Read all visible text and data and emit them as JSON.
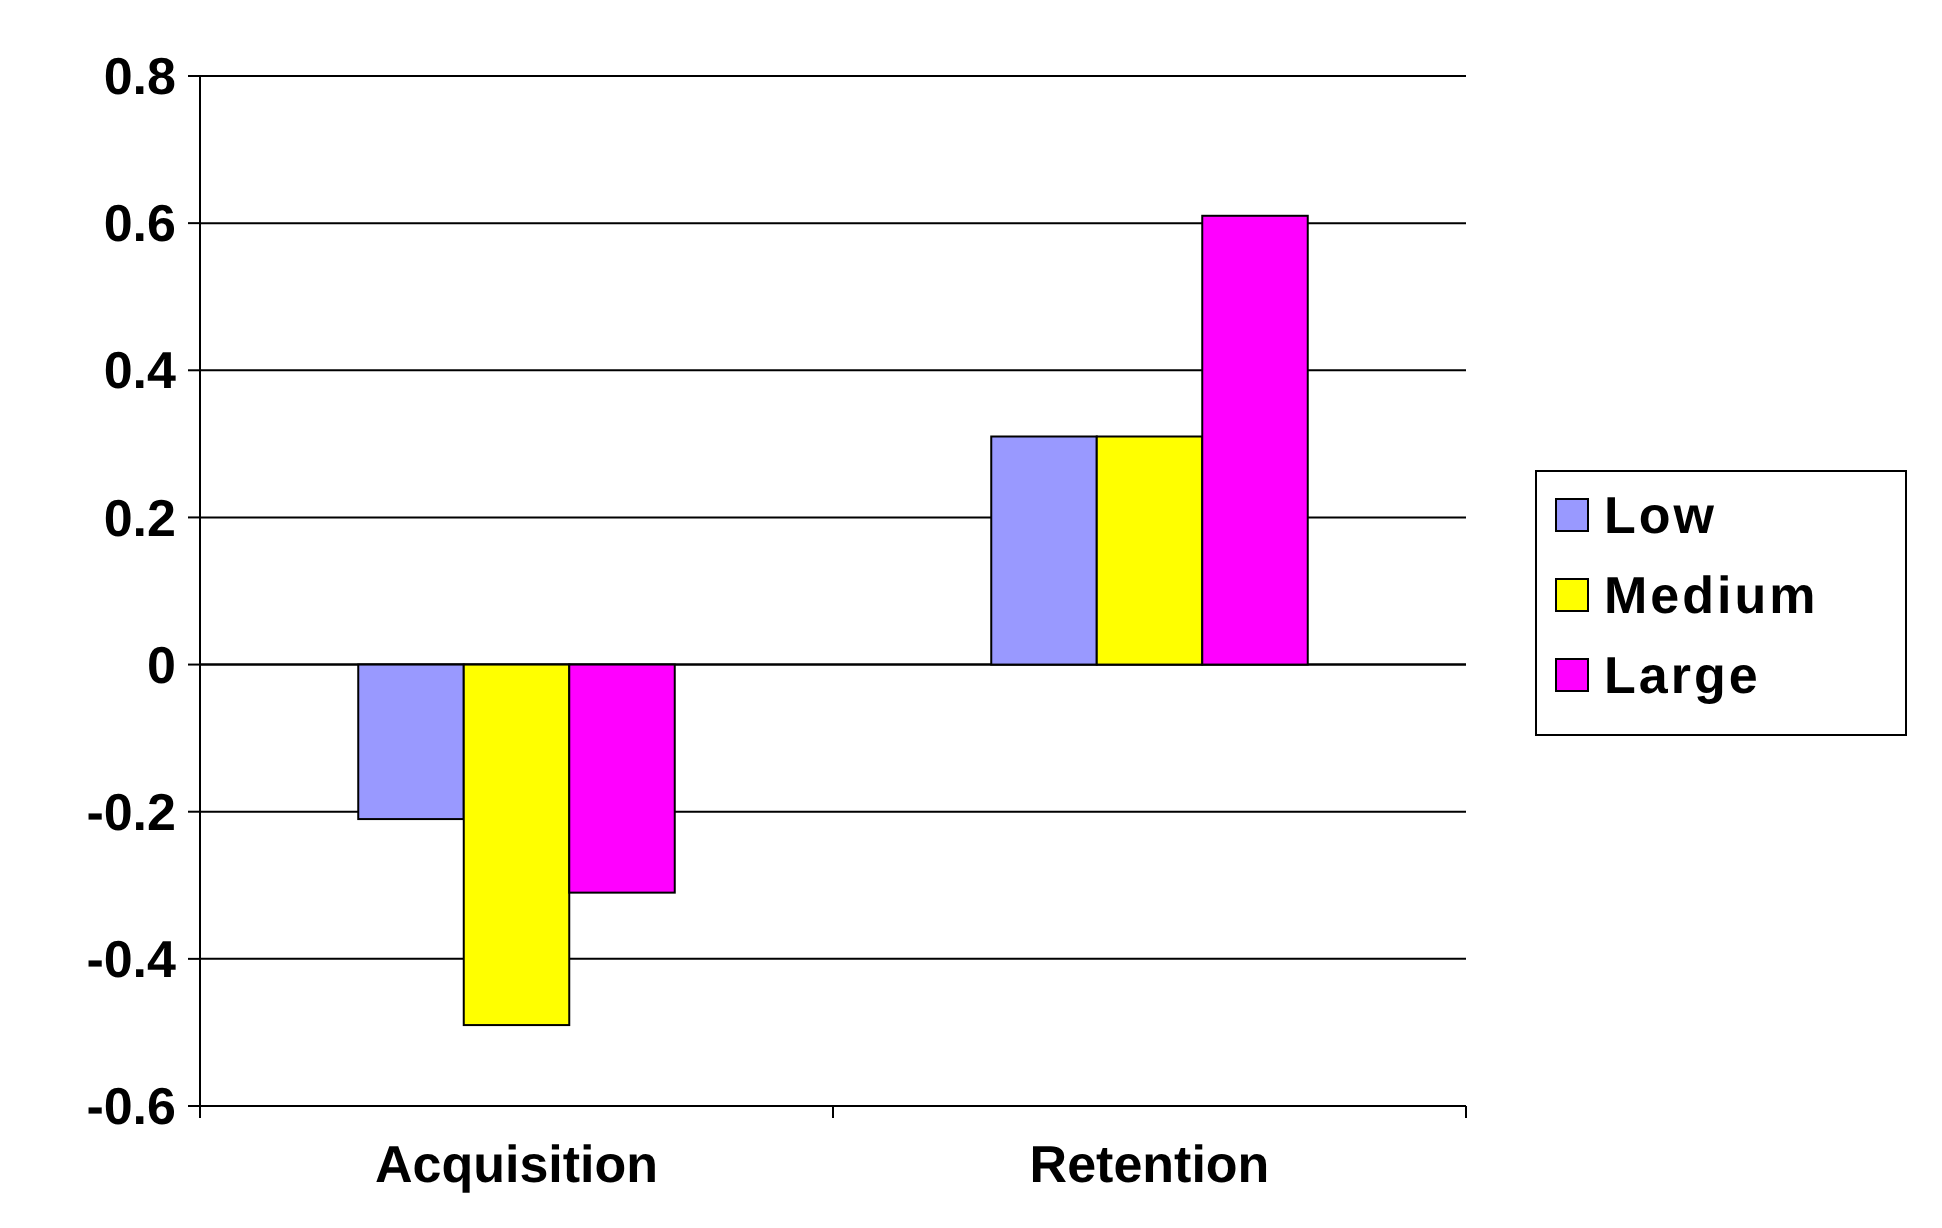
{
  "chart_data": {
    "type": "bar",
    "categories": [
      "Acquisition",
      "Retention"
    ],
    "series": [
      {
        "name": "Low",
        "color": "#9999ff",
        "values": [
          -0.21,
          0.31
        ]
      },
      {
        "name": "Medium",
        "color": "#ffff00",
        "values": [
          -0.49,
          0.31
        ]
      },
      {
        "name": "Large",
        "color": "#ff00ff",
        "values": [
          -0.31,
          0.61
        ]
      }
    ],
    "ylim": [
      -0.6,
      0.8
    ],
    "yticks": [
      {
        "value": -0.6,
        "label": "-0.6"
      },
      {
        "value": -0.4,
        "label": "-0.4"
      },
      {
        "value": -0.2,
        "label": "-0.2"
      },
      {
        "value": 0,
        "label": "0"
      },
      {
        "value": 0.2,
        "label": "0.2"
      },
      {
        "value": 0.4,
        "label": "0.4"
      },
      {
        "value": 0.6,
        "label": "0.6"
      },
      {
        "value": 0.8,
        "label": "0.8"
      }
    ],
    "grid": "y",
    "legend": "right"
  }
}
